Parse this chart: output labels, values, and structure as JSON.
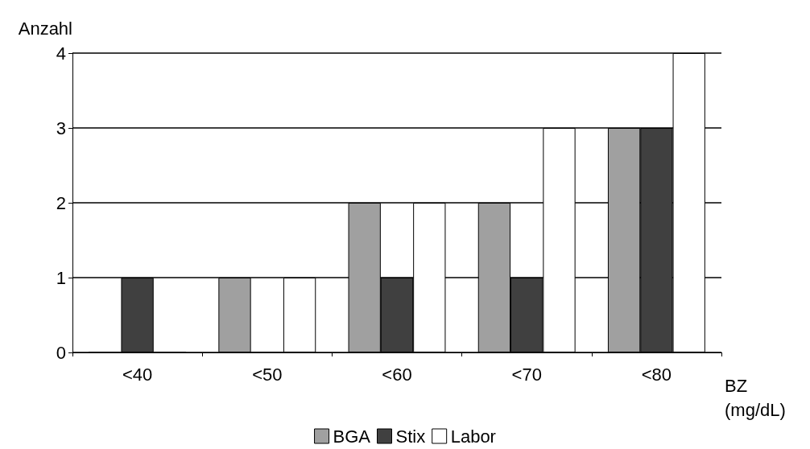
{
  "chart_data": {
    "type": "bar",
    "ylabel": "Anzahl",
    "xlabel": "BZ\n(mg/dL)",
    "categories": [
      "<40",
      "<50",
      "<60",
      "<70",
      "<80"
    ],
    "series": [
      {
        "name": "BGA",
        "color": "#a0a0a0",
        "values": [
          0,
          1,
          2,
          2,
          3
        ]
      },
      {
        "name": "Stix",
        "color": "#404040",
        "values": [
          1,
          0,
          1,
          1,
          3
        ]
      },
      {
        "name": "Labor",
        "color": "#ffffff",
        "values": [
          0,
          1,
          2,
          3,
          4
        ]
      }
    ],
    "ylim": [
      0,
      4
    ],
    "yticks": [
      0,
      1,
      2,
      3,
      4
    ],
    "grid": "y",
    "legend": "bottom"
  }
}
